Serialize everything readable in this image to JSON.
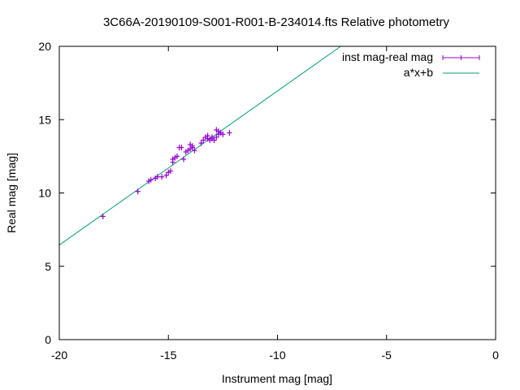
{
  "chart_data": {
    "type": "scatter",
    "title": "3C66A-20190109-S001-R001-B-234014.fts Relative photometry",
    "xlabel": "Instrument mag [mag]",
    "ylabel": "Real mag [mag]",
    "xlim": [
      -20,
      0
    ],
    "ylim": [
      0,
      20
    ],
    "xticks": [
      -20,
      -15,
      -10,
      -5,
      0
    ],
    "xtick_labels": [
      "-20",
      "-15",
      "-10",
      "-5",
      "0"
    ],
    "yticks": [
      0,
      5,
      10,
      15,
      20
    ],
    "ytick_labels": [
      "0",
      "5",
      "10",
      "15",
      "20"
    ],
    "grid": false,
    "legend_position": "top-right",
    "series": [
      {
        "name": "inst mag-real mag",
        "style": "points-with-errorbars",
        "color": "#9400d3",
        "x": [
          -18.0,
          -16.4,
          -15.9,
          -15.8,
          -15.6,
          -15.5,
          -15.3,
          -15.1,
          -15.0,
          -14.9,
          -14.8,
          -14.8,
          -14.7,
          -14.6,
          -14.5,
          -14.4,
          -14.3,
          -14.2,
          -14.1,
          -14.0,
          -14.0,
          -13.9,
          -13.9,
          -13.8,
          -13.5,
          -13.4,
          -13.3,
          -13.2,
          -13.2,
          -13.1,
          -13.0,
          -13.0,
          -12.9,
          -12.8,
          -12.8,
          -12.7,
          -12.7,
          -12.6,
          -12.5,
          -12.2
        ],
        "y": [
          8.4,
          10.1,
          10.8,
          10.9,
          11.0,
          11.1,
          11.1,
          11.2,
          11.4,
          11.5,
          12.1,
          12.3,
          12.4,
          12.5,
          13.1,
          13.1,
          12.3,
          12.8,
          12.9,
          13.0,
          13.3,
          13.1,
          13.2,
          12.9,
          13.4,
          13.6,
          13.8,
          13.7,
          13.9,
          13.6,
          13.7,
          13.8,
          13.6,
          13.8,
          14.3,
          14.0,
          14.2,
          14.1,
          14.0,
          14.1
        ]
      },
      {
        "name": "a*x+b",
        "style": "line",
        "color": "#009e73",
        "x": [
          -20,
          -7.1
        ],
        "y": [
          6.45,
          20.0
        ]
      }
    ]
  }
}
